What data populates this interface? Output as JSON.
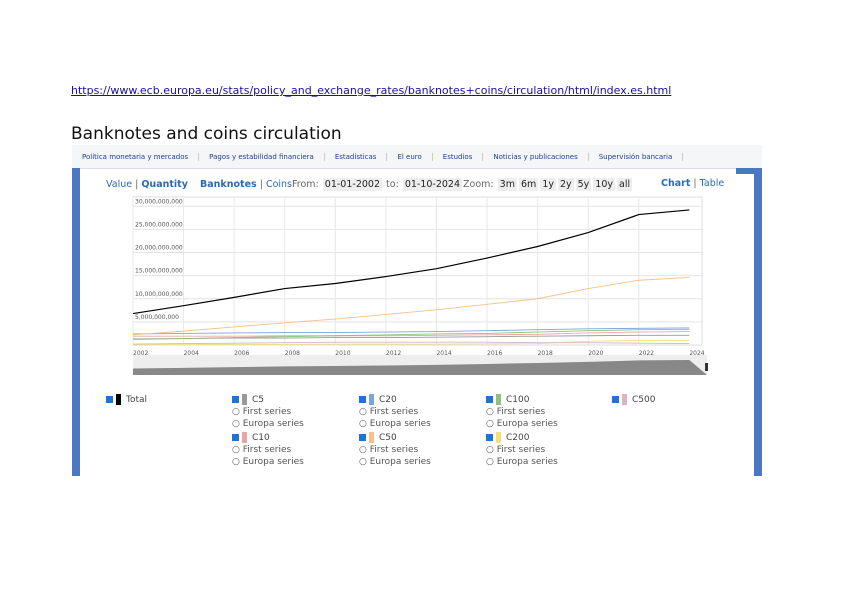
{
  "url": "https://www.ecb.europa.eu/stats/policy_and_exchange_rates/banknotes+coins/circulation/html/index.es.html",
  "title": "Banknotes and coins circulation",
  "nav": [
    "Política monetaria y mercados",
    "Pagos y estabilidad financiera",
    "Estadísticas",
    "El euro",
    "Estudios",
    "Noticias y publicaciones",
    "Supervisión bancaria"
  ],
  "controls": {
    "value": "Value",
    "quantity": "Quantity",
    "banknotes": "Banknotes",
    "coins": "Coins",
    "from_label": "From:",
    "from": "01-01-2002",
    "to_label": "to:",
    "to": "01-10-2024",
    "zoom_label": "Zoom:",
    "zooms": [
      "3m",
      "6m",
      "1y",
      "2y",
      "5y",
      "10y",
      "all"
    ],
    "chart": "Chart",
    "table": "Table",
    "sep": "|"
  },
  "legend": {
    "total": {
      "label": "Total",
      "color": "#000000"
    },
    "groups": [
      {
        "label": "C5",
        "color": "#999999",
        "subs": [
          "First series",
          "Europa series"
        ]
      },
      {
        "label": "C10",
        "color": "#e8a7a7",
        "subs": [
          "First series",
          "Europa series"
        ]
      },
      {
        "label": "C20",
        "color": "#7aa6d6",
        "subs": [
          "First series",
          "Europa series"
        ]
      },
      {
        "label": "C50",
        "color": "#f5c08a",
        "subs": [
          "First series",
          "Europa series"
        ]
      },
      {
        "label": "C100",
        "color": "#8fc07f",
        "subs": [
          "First series",
          "Europa series"
        ]
      },
      {
        "label": "C200",
        "color": "#f3e07a",
        "subs": [
          "First series",
          "Europa series"
        ]
      },
      {
        "label": "C500",
        "color": "#d9b3c6",
        "subs": []
      }
    ]
  },
  "chart_data": {
    "type": "line",
    "title": "",
    "xlabel": "",
    "ylabel": "",
    "x": [
      2002,
      2004,
      2006,
      2008,
      2010,
      2012,
      2014,
      2016,
      2018,
      2020,
      2022,
      2024
    ],
    "xticks": [
      "2002",
      "2004",
      "2006",
      "2008",
      "2010",
      "2012",
      "2014",
      "2016",
      "2018",
      "2020",
      "2022",
      "2024"
    ],
    "yticks": [
      "5,000,000,000",
      "10,000,000,000",
      "15,000,000,000",
      "20,000,000,000",
      "25,000,000,000",
      "30,000,000,000"
    ],
    "ytick_values": [
      5000000000.0,
      10000000000.0,
      15000000000.0,
      20000000000.0,
      25000000000.0,
      30000000000.0
    ],
    "ylim": [
      0,
      32000000000.0
    ],
    "series": [
      {
        "name": "Total",
        "color": "#000000",
        "values": [
          6800000000.0,
          8500000000.0,
          10300000000.0,
          12200000000.0,
          13300000000.0,
          14800000000.0,
          16500000000.0,
          18800000000.0,
          21300000000.0,
          24300000000.0,
          28200000000.0,
          29200000000.0
        ]
      },
      {
        "name": "C50",
        "color": "#f5c08a",
        "values": [
          2200000000.0,
          3000000000.0,
          3900000000.0,
          4800000000.0,
          5600000000.0,
          6600000000.0,
          7600000000.0,
          8800000000.0,
          10000000000.0,
          12200000000.0,
          14000000000.0,
          14600000000.0
        ]
      },
      {
        "name": "C20",
        "color": "#7aa6d6",
        "values": [
          2400000000.0,
          2500000000.0,
          2600000000.0,
          2700000000.0,
          2700000000.0,
          2800000000.0,
          2900000000.0,
          3100000000.0,
          3300000000.0,
          3500000000.0,
          3600000000.0,
          3700000000.0
        ]
      },
      {
        "name": "C100",
        "color": "#8fc07f",
        "values": [
          1200000000.0,
          1400000000.0,
          1600000000.0,
          1800000000.0,
          2000000000.0,
          2200000000.0,
          2400000000.0,
          2500000000.0,
          2800000000.0,
          3100000000.0,
          3300000000.0,
          3400000000.0
        ]
      },
      {
        "name": "C10",
        "color": "#e8a7a7",
        "values": [
          1900000000.0,
          1900000000.0,
          1900000000.0,
          2000000000.0,
          2000000000.0,
          2000000000.0,
          2100000000.0,
          2200000000.0,
          2300000000.0,
          2600000000.0,
          2800000000.0,
          2900000000.0
        ]
      },
      {
        "name": "C5",
        "color": "#999999",
        "values": [
          1300000000.0,
          1400000000.0,
          1500000000.0,
          1500000000.0,
          1600000000.0,
          1600000000.0,
          1700000000.0,
          1800000000.0,
          1900000000.0,
          2000000000.0,
          2100000000.0,
          2100000000.0
        ]
      },
      {
        "name": "C500",
        "color": "#d9b3c6",
        "values": [
          200000000.0,
          300000000.0,
          400000000.0,
          500000000.0,
          600000000.0,
          600000000.0,
          600000000.0,
          600000000.0,
          500000000.0,
          500000000.0,
          400000000.0,
          300000000.0
        ]
      },
      {
        "name": "C200",
        "color": "#f3e07a",
        "values": [
          100000000.0,
          100000000.0,
          150000000.0,
          150000000.0,
          200000000.0,
          200000000.0,
          200000000.0,
          250000000.0,
          300000000.0,
          800000000.0,
          1000000000.0,
          1000000000.0
        ]
      }
    ]
  }
}
